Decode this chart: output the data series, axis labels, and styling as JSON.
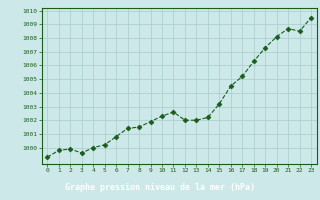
{
  "x": [
    0,
    1,
    2,
    3,
    4,
    5,
    6,
    7,
    8,
    9,
    10,
    11,
    12,
    13,
    14,
    15,
    16,
    17,
    18,
    19,
    20,
    21,
    22,
    23
  ],
  "y": [
    999.3,
    999.8,
    999.9,
    999.6,
    1000.0,
    1000.2,
    1000.8,
    1001.4,
    1001.5,
    1001.9,
    1002.3,
    1002.6,
    1002.0,
    1002.0,
    1002.2,
    1003.2,
    1004.5,
    1005.2,
    1006.3,
    1007.3,
    1008.1,
    1008.7,
    1008.5,
    1009.5
  ],
  "line_color": "#1a5c1a",
  "marker_color": "#1a5c1a",
  "bg_color": "#cce8e8",
  "grid_color": "#aacccc",
  "bottom_bar_color": "#1a5c1a",
  "xlabel": "Graphe pression niveau de la mer (hPa)",
  "xlabel_color": "#ffffff",
  "tick_color": "#1a5c1a",
  "ylim": [
    998.8,
    1010.2
  ],
  "xlim": [
    -0.5,
    23.5
  ],
  "yticks": [
    1000,
    1001,
    1002,
    1003,
    1004,
    1005,
    1006,
    1007,
    1008,
    1009,
    1010
  ],
  "xticks": [
    0,
    1,
    2,
    3,
    4,
    5,
    6,
    7,
    8,
    9,
    10,
    11,
    12,
    13,
    14,
    15,
    16,
    17,
    18,
    19,
    20,
    21,
    22,
    23
  ]
}
